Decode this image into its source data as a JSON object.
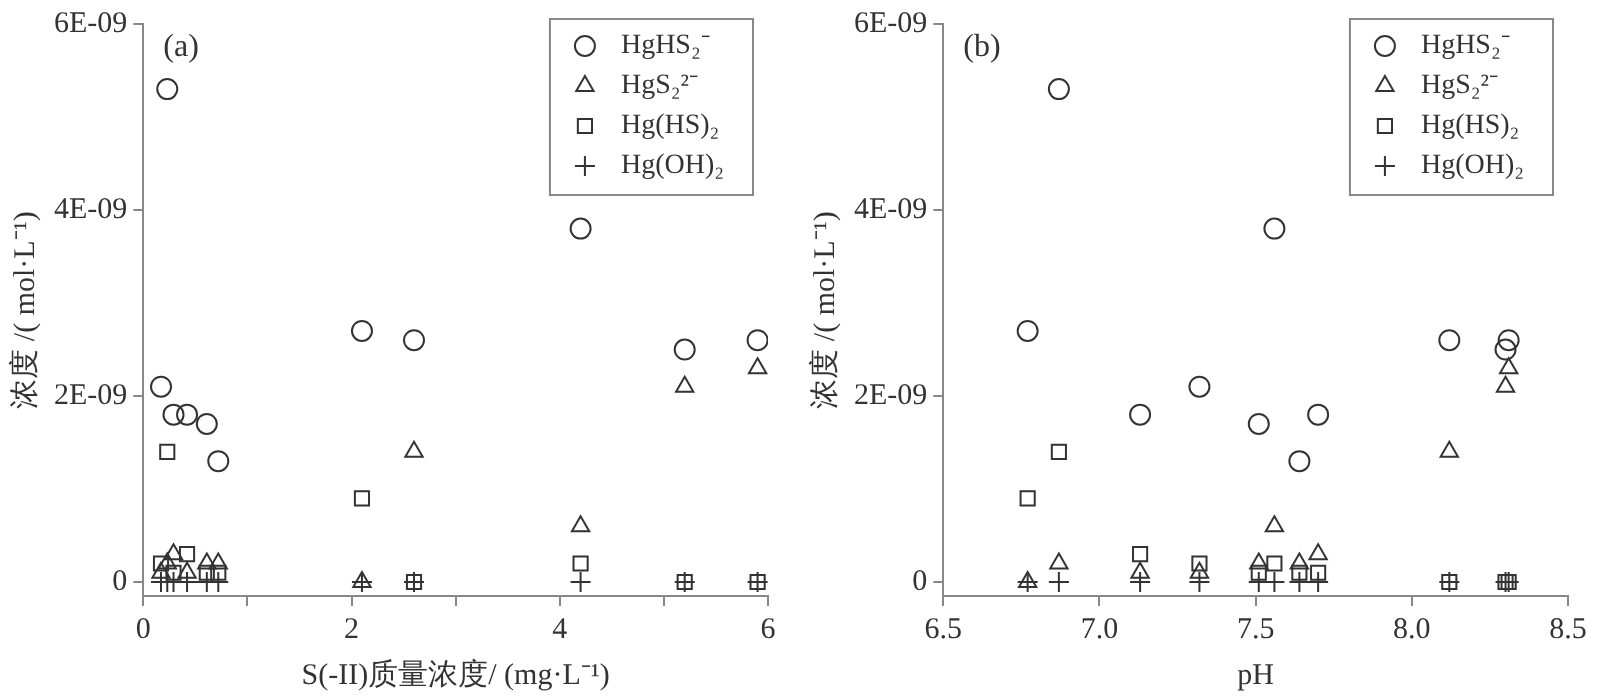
{
  "chart_data": [
    {
      "type": "scatter",
      "xlabel": "S(-II)质量浓度/ (mg·L⁻¹)",
      "ylabel": "浓度 /( mol·L⁻¹)",
      "annotations": [
        "(a)"
      ],
      "x": [
        0.23,
        0.17,
        0.29,
        0.42,
        0.61,
        0.72,
        2.1,
        2.6,
        4.2,
        5.2,
        5.9
      ],
      "series": [
        {
          "name": "HgHS₂⁻",
          "color": "#333333",
          "marker": "circle",
          "values": [
            5.3e-09,
            2.1e-09,
            1.8e-09,
            1.8e-09,
            1.7e-09,
            1.3e-09,
            2.7e-09,
            2.6e-09,
            3.8e-09,
            2.5e-09,
            2.6e-09
          ]
        },
        {
          "name": "HgS₂²⁻",
          "color": "#333333",
          "marker": "triangle",
          "values": [
            2e-10,
            1e-10,
            3e-10,
            1e-10,
            2e-10,
            2e-10,
            0,
            1.4e-09,
            6e-10,
            2.1e-09,
            2.3e-09
          ]
        },
        {
          "name": "Hg(HS)₂",
          "color": "#333333",
          "marker": "square",
          "values": [
            1.4e-09,
            2e-10,
            1e-10,
            3e-10,
            1e-10,
            1e-10,
            9e-10,
            0,
            2e-10,
            0,
            0
          ]
        },
        {
          "name": "Hg(OH)₂",
          "color": "#333333",
          "marker": "cross",
          "values": [
            0,
            0,
            0,
            0,
            0,
            0,
            0,
            0,
            0,
            0,
            0
          ]
        }
      ],
      "xlim": [
        0,
        6
      ],
      "xticks": [
        0,
        {
          "value": 1,
          "label": null
        },
        2,
        {
          "value": 3,
          "label": null
        },
        4,
        {
          "value": 5,
          "label": null
        },
        6
      ],
      "ylim": [
        -1.5e-10,
        6e-09
      ],
      "yticks": [
        {
          "value": 0,
          "label": "0"
        },
        {
          "value": 2e-09,
          "label": "2E-09"
        },
        {
          "value": 4e-09,
          "label": "4E-09"
        },
        {
          "value": 6e-09,
          "label": "6E-09"
        }
      ],
      "grid": false,
      "legend": "top right"
    },
    {
      "type": "scatter",
      "xlabel": "pH",
      "ylabel": "浓度 /( mol·L⁻¹)",
      "annotations": [
        "(b)"
      ],
      "x": [
        6.87,
        7.32,
        7.7,
        7.13,
        7.51,
        7.64,
        6.77,
        8.12,
        7.56,
        8.3,
        8.31
      ],
      "series": [
        {
          "name": "HgHS₂⁻",
          "color": "#333333",
          "marker": "circle",
          "values": [
            5.3e-09,
            2.1e-09,
            1.8e-09,
            1.8e-09,
            1.7e-09,
            1.3e-09,
            2.7e-09,
            2.6e-09,
            3.8e-09,
            2.5e-09,
            2.6e-09
          ]
        },
        {
          "name": "HgS₂²⁻",
          "color": "#333333",
          "marker": "triangle",
          "values": [
            2e-10,
            1e-10,
            3e-10,
            1e-10,
            2e-10,
            2e-10,
            0,
            1.4e-09,
            6e-10,
            2.1e-09,
            2.3e-09
          ]
        },
        {
          "name": "Hg(HS)₂",
          "color": "#333333",
          "marker": "square",
          "values": [
            1.4e-09,
            2e-10,
            1e-10,
            3e-10,
            1e-10,
            1e-10,
            9e-10,
            0,
            2e-10,
            0,
            0
          ]
        },
        {
          "name": "Hg(OH)₂",
          "color": "#333333",
          "marker": "cross",
          "values": [
            0,
            0,
            0,
            0,
            0,
            0,
            0,
            0,
            0,
            0,
            0
          ]
        }
      ],
      "xlim": [
        6.5,
        8.5
      ],
      "xticks": [
        6.5,
        {
          "value": 7,
          "label": "7.0"
        },
        7.5,
        {
          "value": 8,
          "label": "8.0"
        },
        8.5
      ],
      "ylim": [
        -1.5e-10,
        6e-09
      ],
      "yticks": [
        {
          "value": 0,
          "label": "0"
        },
        {
          "value": 2e-09,
          "label": "2E-09"
        },
        {
          "value": 4e-09,
          "label": "4E-09"
        },
        {
          "value": 6e-09,
          "label": "6E-09"
        }
      ],
      "grid": false,
      "legend": "top right"
    }
  ]
}
